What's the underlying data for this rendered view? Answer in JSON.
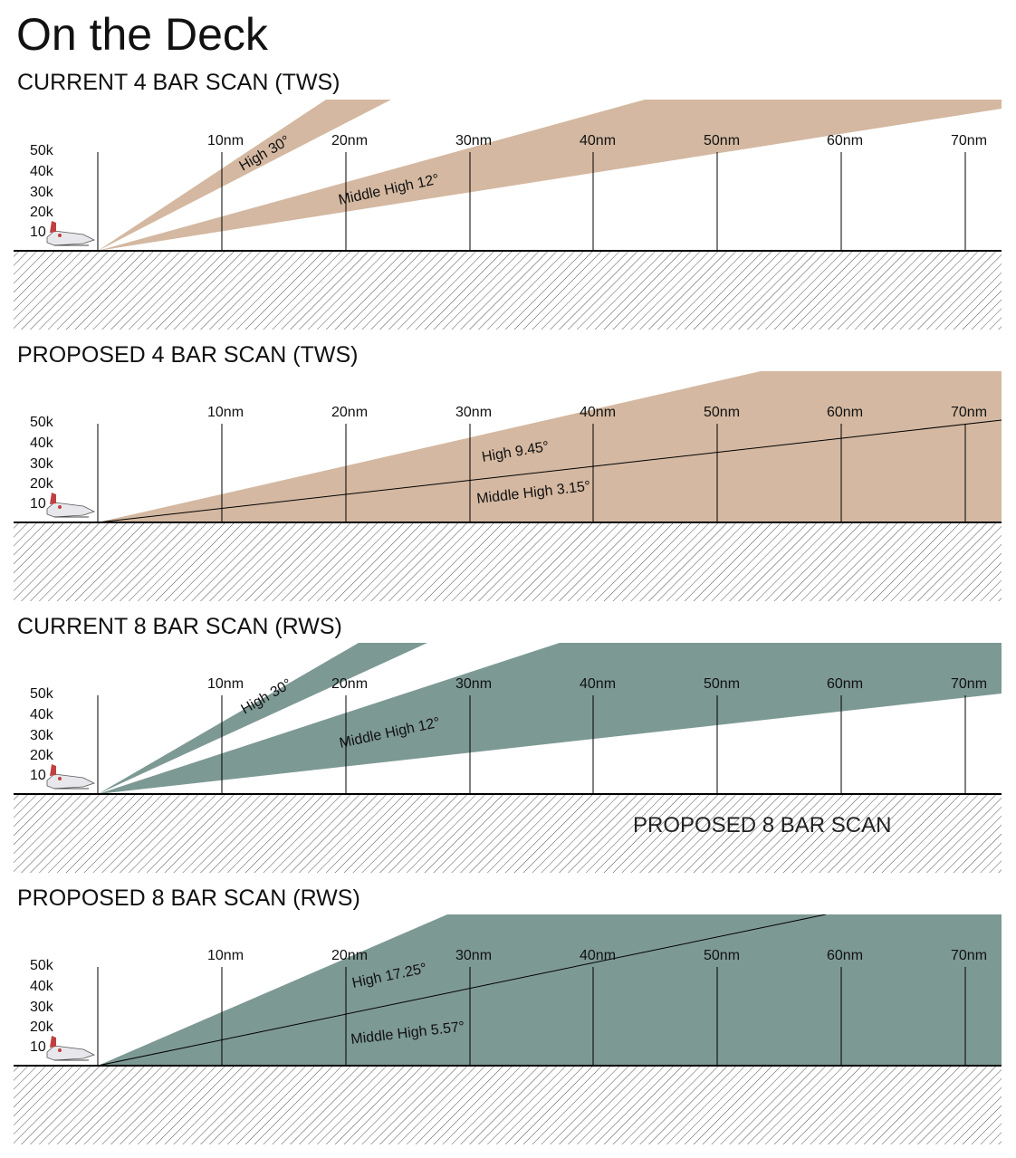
{
  "page": {
    "title": "On the Deck"
  },
  "colors": {
    "tws_fill": "#d4b8a1",
    "rws_fill": "#7d9994",
    "ground": "#ffffff",
    "hatch": "#555555",
    "line": "#000000"
  },
  "altitude_labels": [
    "50k",
    "40k",
    "30k",
    "20k",
    "10"
  ],
  "range_labels": [
    "10nm",
    "20nm",
    "30nm",
    "40nm",
    "50nm",
    "60nm",
    "70nm"
  ],
  "icons": {
    "aircraft": "fighter-jet-icon"
  },
  "panels": [
    {
      "heading": "CURRENT 4 BAR SCAN (TWS)",
      "mode": "TWS",
      "bars": [
        {
          "label": "High 30°",
          "angle_deg": 30
        },
        {
          "label": "Middle High 12°",
          "angle_deg": 12
        }
      ]
    },
    {
      "heading": "PROPOSED 4 BAR SCAN (TWS)",
      "mode": "TWS",
      "bars": [
        {
          "label": "High 9.45°",
          "angle_deg": 9.45
        },
        {
          "label": "Middle High 3.15°",
          "angle_deg": 3.15
        }
      ]
    },
    {
      "heading": "CURRENT 8 BAR SCAN (RWS)",
      "mode": "RWS",
      "bars": [
        {
          "label": "High 30°",
          "angle_deg": 30
        },
        {
          "label": "Middle High 12°",
          "angle_deg": 12
        }
      ],
      "note": "PROPOSED 8 BAR SCAN"
    },
    {
      "heading": "PROPOSED 8 BAR SCAN (RWS)",
      "mode": "RWS",
      "bars": [
        {
          "label": "High 17.25°",
          "angle_deg": 17.25
        },
        {
          "label": "Middle High 5.57°",
          "angle_deg": 5.57
        }
      ]
    }
  ]
}
